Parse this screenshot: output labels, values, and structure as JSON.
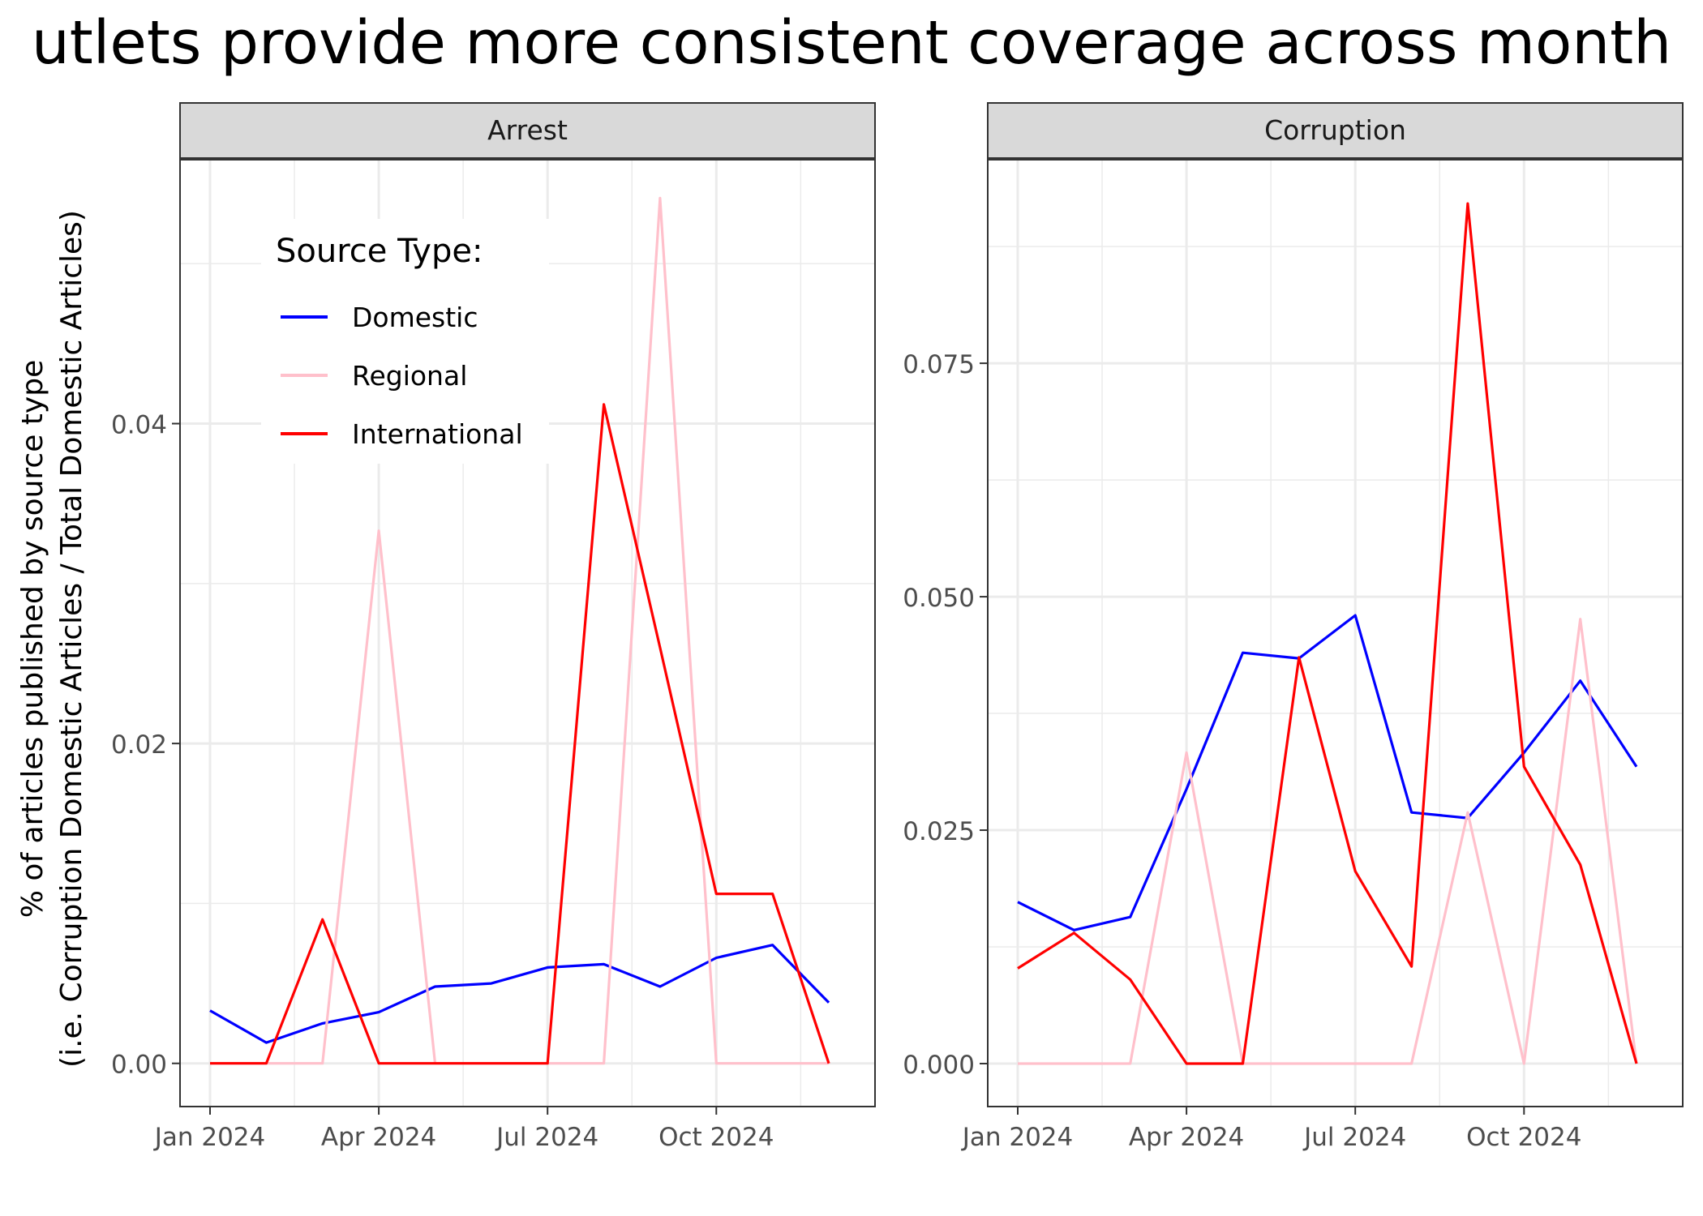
{
  "title": "utlets provide more consistent coverage across month",
  "ylabel_line1": "% of articles published by source type",
  "ylabel_line2": "(i.e. Corruption Domestic Articles / Total Domestic Articles)",
  "legend": {
    "title": "Source Type:",
    "placement": "top-left inside Arrest panel",
    "items": [
      {
        "label": "Domestic",
        "color": "#0000ff"
      },
      {
        "label": "Regional",
        "color": "#ffc0cb"
      },
      {
        "label": "International",
        "color": "#ff0000"
      }
    ]
  },
  "chart_data": [
    {
      "type": "line",
      "facet": "Arrest",
      "x": [
        "2024-01",
        "2024-02",
        "2024-03",
        "2024-04",
        "2024-05",
        "2024-06",
        "2024-07",
        "2024-08",
        "2024-09",
        "2024-10",
        "2024-11",
        "2024-12"
      ],
      "x_ticks": [
        "Jan 2024",
        "Apr 2024",
        "Jul 2024",
        "Oct 2024"
      ],
      "y_ticks": [
        "0.00",
        "0.02",
        "0.04"
      ],
      "ylim": [
        -0.0027,
        0.0565
      ],
      "grid": true,
      "series": [
        {
          "name": "Domestic",
          "color": "#0000ff",
          "values": [
            0.0033,
            0.0013,
            0.0025,
            0.0032,
            0.0048,
            0.005,
            0.006,
            0.0062,
            0.0048,
            0.0066,
            0.0074,
            0.0038
          ]
        },
        {
          "name": "Regional",
          "color": "#ffc0cb",
          "values": [
            0,
            0,
            0,
            0.0333,
            0,
            0,
            0,
            0,
            0.0541,
            0,
            0,
            0
          ]
        },
        {
          "name": "International",
          "color": "#ff0000",
          "values": [
            0,
            0,
            0.009,
            0,
            0,
            0,
            0,
            0.0412,
            0.026,
            0.0106,
            0.0106,
            0
          ]
        }
      ]
    },
    {
      "type": "line",
      "facet": "Corruption",
      "x": [
        "2024-01",
        "2024-02",
        "2024-03",
        "2024-04",
        "2024-05",
        "2024-06",
        "2024-07",
        "2024-08",
        "2024-09",
        "2024-10",
        "2024-11",
        "2024-12"
      ],
      "x_ticks": [
        "Jan 2024",
        "Apr 2024",
        "Jul 2024",
        "Oct 2024"
      ],
      "y_ticks": [
        "0.000",
        "0.025",
        "0.050",
        "0.075"
      ],
      "ylim": [
        -0.0046,
        0.0968
      ],
      "grid": true,
      "series": [
        {
          "name": "Domestic",
          "color": "#0000ff",
          "values": [
            0.0173,
            0.0143,
            0.0157,
            0.0294,
            0.044,
            0.0434,
            0.048,
            0.0269,
            0.0263,
            0.0333,
            0.041,
            0.0318
          ]
        },
        {
          "name": "Regional",
          "color": "#ffc0cb",
          "values": [
            0,
            0,
            0,
            0.0333,
            0,
            0,
            0,
            0,
            0.0269,
            0,
            0.0476,
            0
          ]
        },
        {
          "name": "International",
          "color": "#ff0000",
          "values": [
            0.0102,
            0.014,
            0.009,
            0,
            0,
            0.0435,
            0.0206,
            0.0104,
            0.0921,
            0.0318,
            0.0213,
            0
          ]
        }
      ]
    }
  ]
}
